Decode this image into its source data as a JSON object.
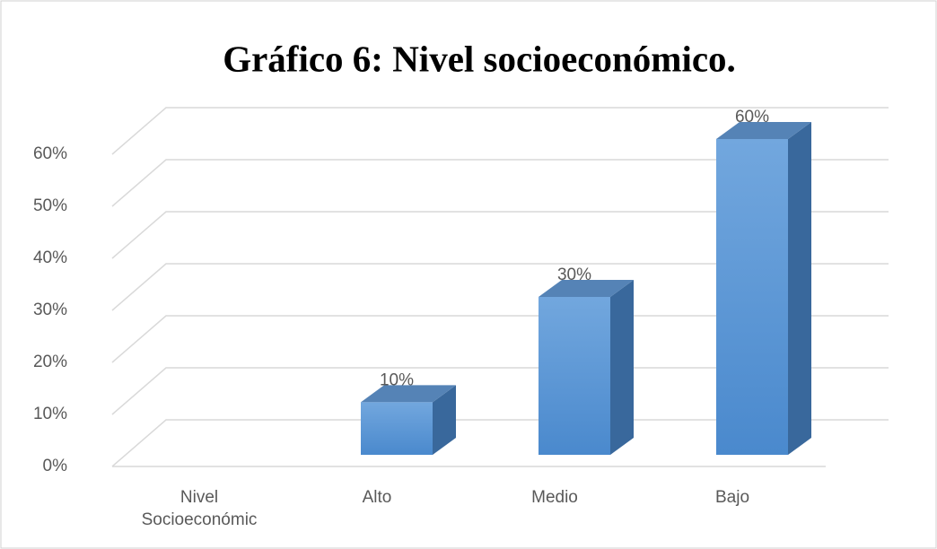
{
  "chart_data": {
    "type": "bar3d",
    "title": "Gráfico 6: Nivel socioeconómico.",
    "categories": [
      "Nivel Socioeconómic",
      "Alto",
      "Medio",
      "Bajo"
    ],
    "values": [
      null,
      10,
      30,
      60
    ],
    "value_labels": [
      null,
      "10%",
      "30%",
      "60%"
    ],
    "color": "#5b9bd5",
    "ylim": [
      0,
      60
    ],
    "yticks": [
      {
        "value": 0,
        "label": "0%"
      },
      {
        "value": 10,
        "label": "10%"
      },
      {
        "value": 20,
        "label": "20%"
      },
      {
        "value": 30,
        "label": "30%"
      },
      {
        "value": 40,
        "label": "40%"
      },
      {
        "value": 50,
        "label": "50%"
      },
      {
        "value": 60,
        "label": "60%"
      }
    ],
    "grid": true
  }
}
